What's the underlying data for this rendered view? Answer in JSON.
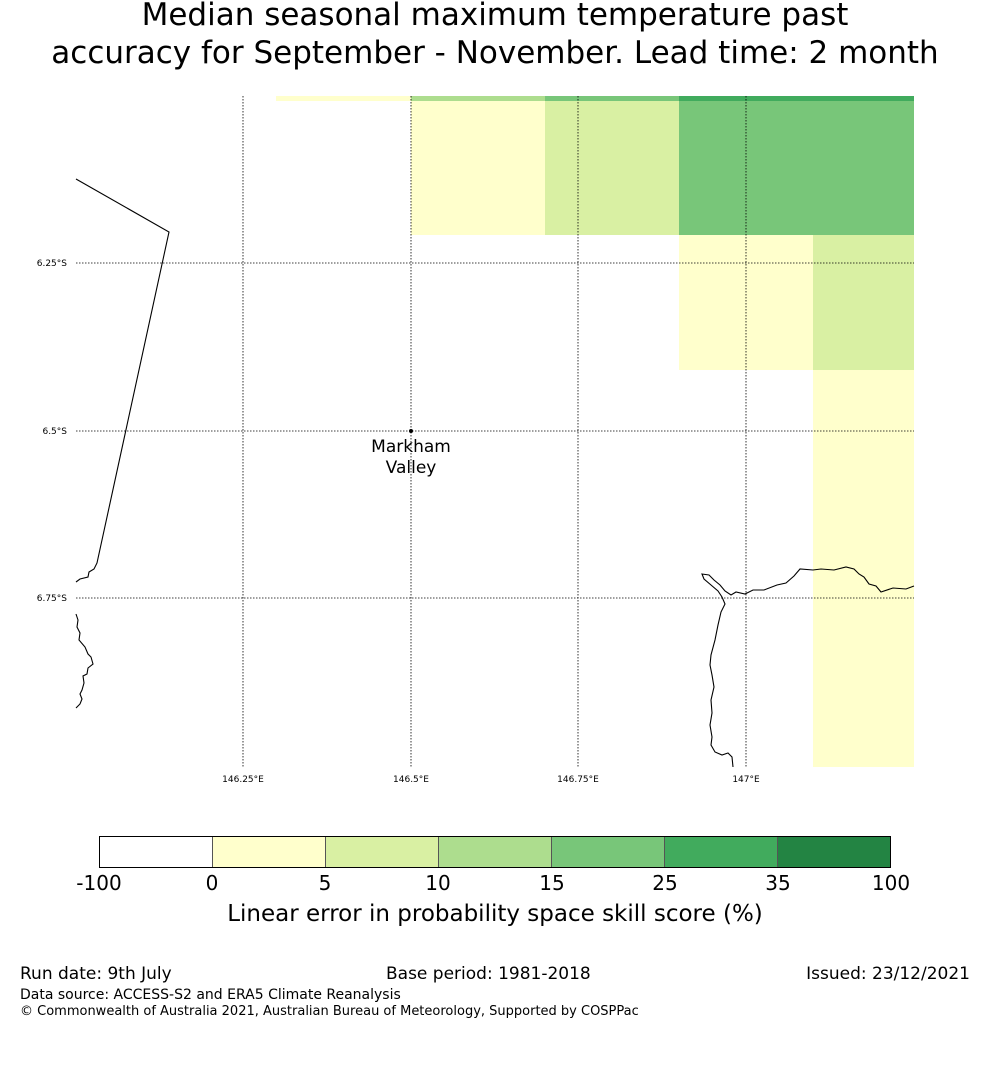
{
  "title": {
    "line1": "Median seasonal maximum temperature past",
    "line2": "accuracy for September - November. Lead time: 2 month"
  },
  "map": {
    "lat_labels": [
      "6.25°S",
      "6.5°S",
      "6.75°S"
    ],
    "lon_labels": [
      "146.25°E",
      "146.5°E",
      "146.75°E",
      "147°E"
    ],
    "place": {
      "name_line1": "Markham",
      "name_line2": "Valley",
      "lon": 146.5,
      "lat": -6.5
    }
  },
  "legend": {
    "ticks": [
      "-100",
      "0",
      "5",
      "10",
      "15",
      "25",
      "35",
      "100"
    ],
    "colors": [
      "#ffffff",
      "#ffffcc",
      "#d9f0a3",
      "#addd8e",
      "#78c679",
      "#41ab5d",
      "#238443"
    ],
    "label": "Linear error in probability space skill score (%)"
  },
  "footer": {
    "run_date": "Run date: 9th July",
    "base_period": "Base period: 1981-2018",
    "issued": "Issued: 23/12/2021",
    "data_source": "Data source: ACCESS-S2 and ERA5 Climate Reanalysis",
    "copyright": "© Commonwealth of Australia 2021, Australian Bureau of Meteorology, Supported by COSPPac"
  }
}
